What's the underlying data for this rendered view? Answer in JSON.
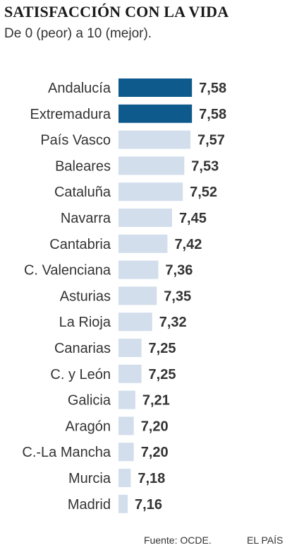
{
  "header": {
    "title": "SATISFACCIÓN CON LA VIDA",
    "subtitle": "De 0 (peor) a 10 (mejor)."
  },
  "footer": {
    "source": "Fuente: OCDE.",
    "brand": "EL PAÍS"
  },
  "colors": {
    "highlight": "#0f5a8c",
    "bar": "#d3deec"
  },
  "chart_data": {
    "type": "bar",
    "orientation": "horizontal",
    "title": "SATISFACCIÓN CON LA VIDA",
    "subtitle": "De 0 (peor) a 10 (mejor).",
    "categories": [
      "Andalucía",
      "Extremadura",
      "País Vasco",
      "Baleares",
      "Cataluña",
      "Navarra",
      "Cantabria",
      "C. Valenciana",
      "Asturias",
      "La Rioja",
      "Canarias",
      "C. y León",
      "Galicia",
      "Aragón",
      "C.-La Mancha",
      "Murcia",
      "Madrid"
    ],
    "values": [
      7.58,
      7.58,
      7.57,
      7.53,
      7.52,
      7.45,
      7.42,
      7.36,
      7.35,
      7.32,
      7.25,
      7.25,
      7.21,
      7.2,
      7.2,
      7.18,
      7.16
    ],
    "value_labels": [
      "7,58",
      "7,58",
      "7,57",
      "7,53",
      "7,52",
      "7,45",
      "7,42",
      "7,36",
      "7,35",
      "7,32",
      "7,25",
      "7,25",
      "7,21",
      "7,20",
      "7,20",
      "7,18",
      "7,16"
    ],
    "highlighted": [
      "Andalucía",
      "Extremadura"
    ],
    "xlim": [
      7.1,
      7.6
    ],
    "grid": false,
    "legend": "none"
  }
}
